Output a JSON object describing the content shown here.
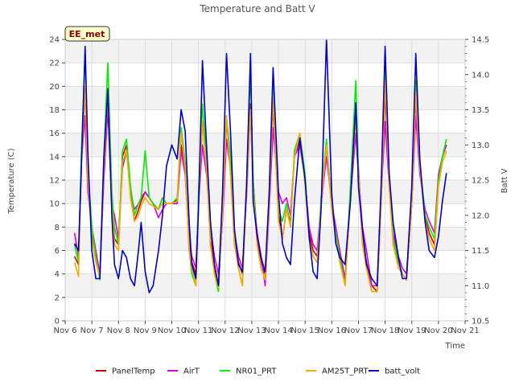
{
  "chart_data": {
    "type": "line",
    "title": "Temperature and Batt V",
    "xlabel": "Time",
    "ylabel": "Temperature (C)",
    "y2label": "Batt V",
    "annotation": "EE_met",
    "x_ticks": [
      "Nov 6",
      "Nov 7",
      "Nov 8",
      "Nov 9",
      "Nov 10",
      "Nov 11",
      "Nov 12",
      "Nov 13",
      "Nov 14",
      "Nov 15",
      "Nov 16",
      "Nov 17",
      "Nov 18",
      "Nov 19",
      "Nov 20",
      "Nov 21"
    ],
    "xlim": [
      6,
      21
    ],
    "ylim": [
      0,
      24
    ],
    "y_ticks": [
      0,
      2,
      4,
      6,
      8,
      10,
      12,
      14,
      16,
      18,
      20,
      22,
      24
    ],
    "y2lim": [
      10.5,
      14.5
    ],
    "y2_ticks": [
      10.5,
      11.0,
      11.5,
      12.0,
      12.5,
      13.0,
      13.5,
      14.0,
      14.5
    ],
    "grid": true,
    "legend_position": "bottom",
    "x": [
      6.35,
      6.5,
      6.6,
      6.75,
      6.85,
      7.0,
      7.15,
      7.3,
      7.45,
      7.6,
      7.75,
      7.85,
      8.0,
      8.15,
      8.3,
      8.45,
      8.6,
      8.75,
      8.85,
      9.0,
      9.15,
      9.3,
      9.5,
      9.65,
      9.8,
      10.0,
      10.2,
      10.35,
      10.5,
      10.65,
      10.75,
      10.9,
      11.0,
      11.15,
      11.3,
      11.45,
      11.6,
      11.75,
      11.9,
      12.05,
      12.2,
      12.35,
      12.5,
      12.65,
      12.8,
      12.95,
      13.05,
      13.2,
      13.35,
      13.5,
      13.65,
      13.8,
      14.0,
      14.15,
      14.3,
      14.45,
      14.6,
      14.8,
      15.0,
      15.15,
      15.3,
      15.45,
      15.6,
      15.8,
      16.0,
      16.15,
      16.3,
      16.5,
      16.7,
      16.9,
      17.0,
      17.15,
      17.3,
      17.5,
      17.7,
      17.85,
      18.0,
      18.15,
      18.3,
      18.5,
      18.65,
      18.8,
      19.0,
      19.15,
      19.3,
      19.5,
      19.65,
      19.85,
      20.0,
      20.15,
      20.3
    ],
    "series": [
      {
        "name": "PanelTemp",
        "color": "#cc0000",
        "values": [
          5.5,
          4.8,
          13.0,
          19.8,
          12.0,
          7.5,
          5.8,
          4.0,
          13.0,
          19.5,
          10.0,
          7.0,
          6.5,
          14.0,
          15.0,
          11.0,
          8.5,
          9.5,
          10.2,
          11.0,
          10.5,
          10.0,
          9.5,
          10.5,
          10.0,
          10.0,
          10.3,
          15.0,
          13.0,
          6.5,
          5.0,
          4.0,
          10.0,
          17.0,
          14.0,
          7.0,
          4.5,
          3.0,
          9.0,
          17.0,
          13.5,
          6.5,
          5.0,
          4.0,
          11.0,
          18.5,
          12.0,
          7.0,
          5.0,
          4.0,
          10.0,
          18.5,
          9.0,
          7.0,
          9.5,
          8.5,
          14.0,
          15.5,
          12.0,
          7.5,
          6.0,
          5.5,
          10.0,
          15.0,
          10.0,
          7.5,
          6.0,
          3.5,
          11.0,
          17.5,
          13.0,
          7.0,
          5.0,
          3.0,
          2.5,
          10.0,
          19.5,
          12.0,
          7.0,
          5.0,
          4.0,
          3.5,
          10.0,
          19.0,
          13.0,
          9.0,
          7.5,
          6.5,
          12.0,
          14.0,
          15.0
        ]
      },
      {
        "name": "AirT",
        "color": "#dd00dd",
        "values": [
          7.5,
          5.5,
          13.5,
          17.5,
          11.0,
          8.0,
          6.0,
          4.0,
          12.0,
          18.0,
          10.0,
          9.0,
          7.0,
          13.0,
          14.5,
          11.0,
          9.5,
          10.0,
          10.5,
          11.0,
          10.5,
          10.0,
          8.8,
          9.5,
          10.0,
          10.0,
          10.0,
          14.5,
          12.5,
          7.0,
          5.5,
          4.5,
          10.0,
          15.0,
          12.5,
          8.0,
          5.5,
          4.0,
          8.5,
          15.5,
          13.0,
          7.5,
          5.5,
          4.5,
          10.5,
          18.0,
          11.0,
          7.5,
          5.5,
          3.0,
          9.5,
          16.5,
          11.0,
          10.0,
          10.5,
          9.0,
          14.0,
          15.0,
          12.0,
          8.0,
          6.5,
          6.0,
          10.0,
          14.0,
          10.0,
          8.0,
          6.0,
          3.5,
          10.5,
          16.0,
          12.5,
          8.0,
          6.0,
          3.0,
          3.0,
          10.5,
          17.0,
          11.5,
          7.5,
          5.5,
          4.5,
          4.0,
          10.0,
          17.5,
          12.5,
          9.5,
          8.5,
          7.5,
          12.5,
          14.0,
          15.0
        ]
      },
      {
        "name": "NR01_PRT",
        "color": "#00ee00",
        "values": [
          6.5,
          5.0,
          14.0,
          23.0,
          13.0,
          8.0,
          5.5,
          3.5,
          14.0,
          22.0,
          11.0,
          8.0,
          6.5,
          14.5,
          15.5,
          11.5,
          9.0,
          10.0,
          10.5,
          14.5,
          10.5,
          10.0,
          9.5,
          10.5,
          10.0,
          10.0,
          10.5,
          16.5,
          13.5,
          6.0,
          4.0,
          3.0,
          11.0,
          18.5,
          14.0,
          6.5,
          4.0,
          2.5,
          9.5,
          17.5,
          14.0,
          7.0,
          4.5,
          3.0,
          11.5,
          21.5,
          12.0,
          6.5,
          4.5,
          3.5,
          11.0,
          21.0,
          9.5,
          8.5,
          10.0,
          8.0,
          14.5,
          16.0,
          12.5,
          7.0,
          5.5,
          5.0,
          10.5,
          15.5,
          9.5,
          7.5,
          5.5,
          3.0,
          11.5,
          20.5,
          12.5,
          7.0,
          4.5,
          2.5,
          2.5,
          11.0,
          21.5,
          12.5,
          7.0,
          5.0,
          4.0,
          3.5,
          11.0,
          20.5,
          13.5,
          9.0,
          8.0,
          7.0,
          12.0,
          14.0,
          15.5
        ]
      },
      {
        "name": "AM25T_PRT",
        "color": "#ffa500",
        "values": [
          5.0,
          3.8,
          13.0,
          20.0,
          12.0,
          7.0,
          5.0,
          3.8,
          13.0,
          19.5,
          10.0,
          6.5,
          6.0,
          13.5,
          14.5,
          10.5,
          8.5,
          9.0,
          9.8,
          10.5,
          10.0,
          9.8,
          9.5,
          10.0,
          10.0,
          10.0,
          10.2,
          16.0,
          13.0,
          6.0,
          4.5,
          3.0,
          10.0,
          17.0,
          13.0,
          6.5,
          4.0,
          2.8,
          9.0,
          17.5,
          12.5,
          6.5,
          4.5,
          3.0,
          11.0,
          18.0,
          11.0,
          6.5,
          4.5,
          3.5,
          10.0,
          19.0,
          8.5,
          7.0,
          9.5,
          8.0,
          14.0,
          16.0,
          11.5,
          7.0,
          5.5,
          5.0,
          10.0,
          15.0,
          9.5,
          7.0,
          5.0,
          3.0,
          10.5,
          17.5,
          12.5,
          6.5,
          4.5,
          2.5,
          2.5,
          10.0,
          20.5,
          11.5,
          6.5,
          4.5,
          4.0,
          3.5,
          10.0,
          19.5,
          13.0,
          8.5,
          7.0,
          6.0,
          11.5,
          13.5,
          14.5
        ]
      },
      {
        "name": "batt_volt",
        "color": "#0000cc",
        "axis": "right",
        "values": [
          11.6,
          11.5,
          12.6,
          14.4,
          12.9,
          11.5,
          11.1,
          11.1,
          12.8,
          13.8,
          12.0,
          11.3,
          11.1,
          11.5,
          11.4,
          11.1,
          11.0,
          11.5,
          11.9,
          11.2,
          10.9,
          11.0,
          11.5,
          12.0,
          12.7,
          13.0,
          12.8,
          13.5,
          13.2,
          11.9,
          11.3,
          11.1,
          12.1,
          14.2,
          13.0,
          11.9,
          11.3,
          11.0,
          12.3,
          14.3,
          13.2,
          11.8,
          11.3,
          11.2,
          12.4,
          14.3,
          12.2,
          11.7,
          11.4,
          11.2,
          12.3,
          14.1,
          12.3,
          11.6,
          11.4,
          11.3,
          12.2,
          13.1,
          12.5,
          11.7,
          11.2,
          11.1,
          12.1,
          14.5,
          12.3,
          11.6,
          11.4,
          11.3,
          12.2,
          13.6,
          12.4,
          11.8,
          11.3,
          11.1,
          11.0,
          12.4,
          14.4,
          12.6,
          11.9,
          11.4,
          11.1,
          11.1,
          12.4,
          14.3,
          12.8,
          11.9,
          11.5,
          11.4,
          11.7,
          12.2,
          12.6
        ]
      }
    ]
  }
}
